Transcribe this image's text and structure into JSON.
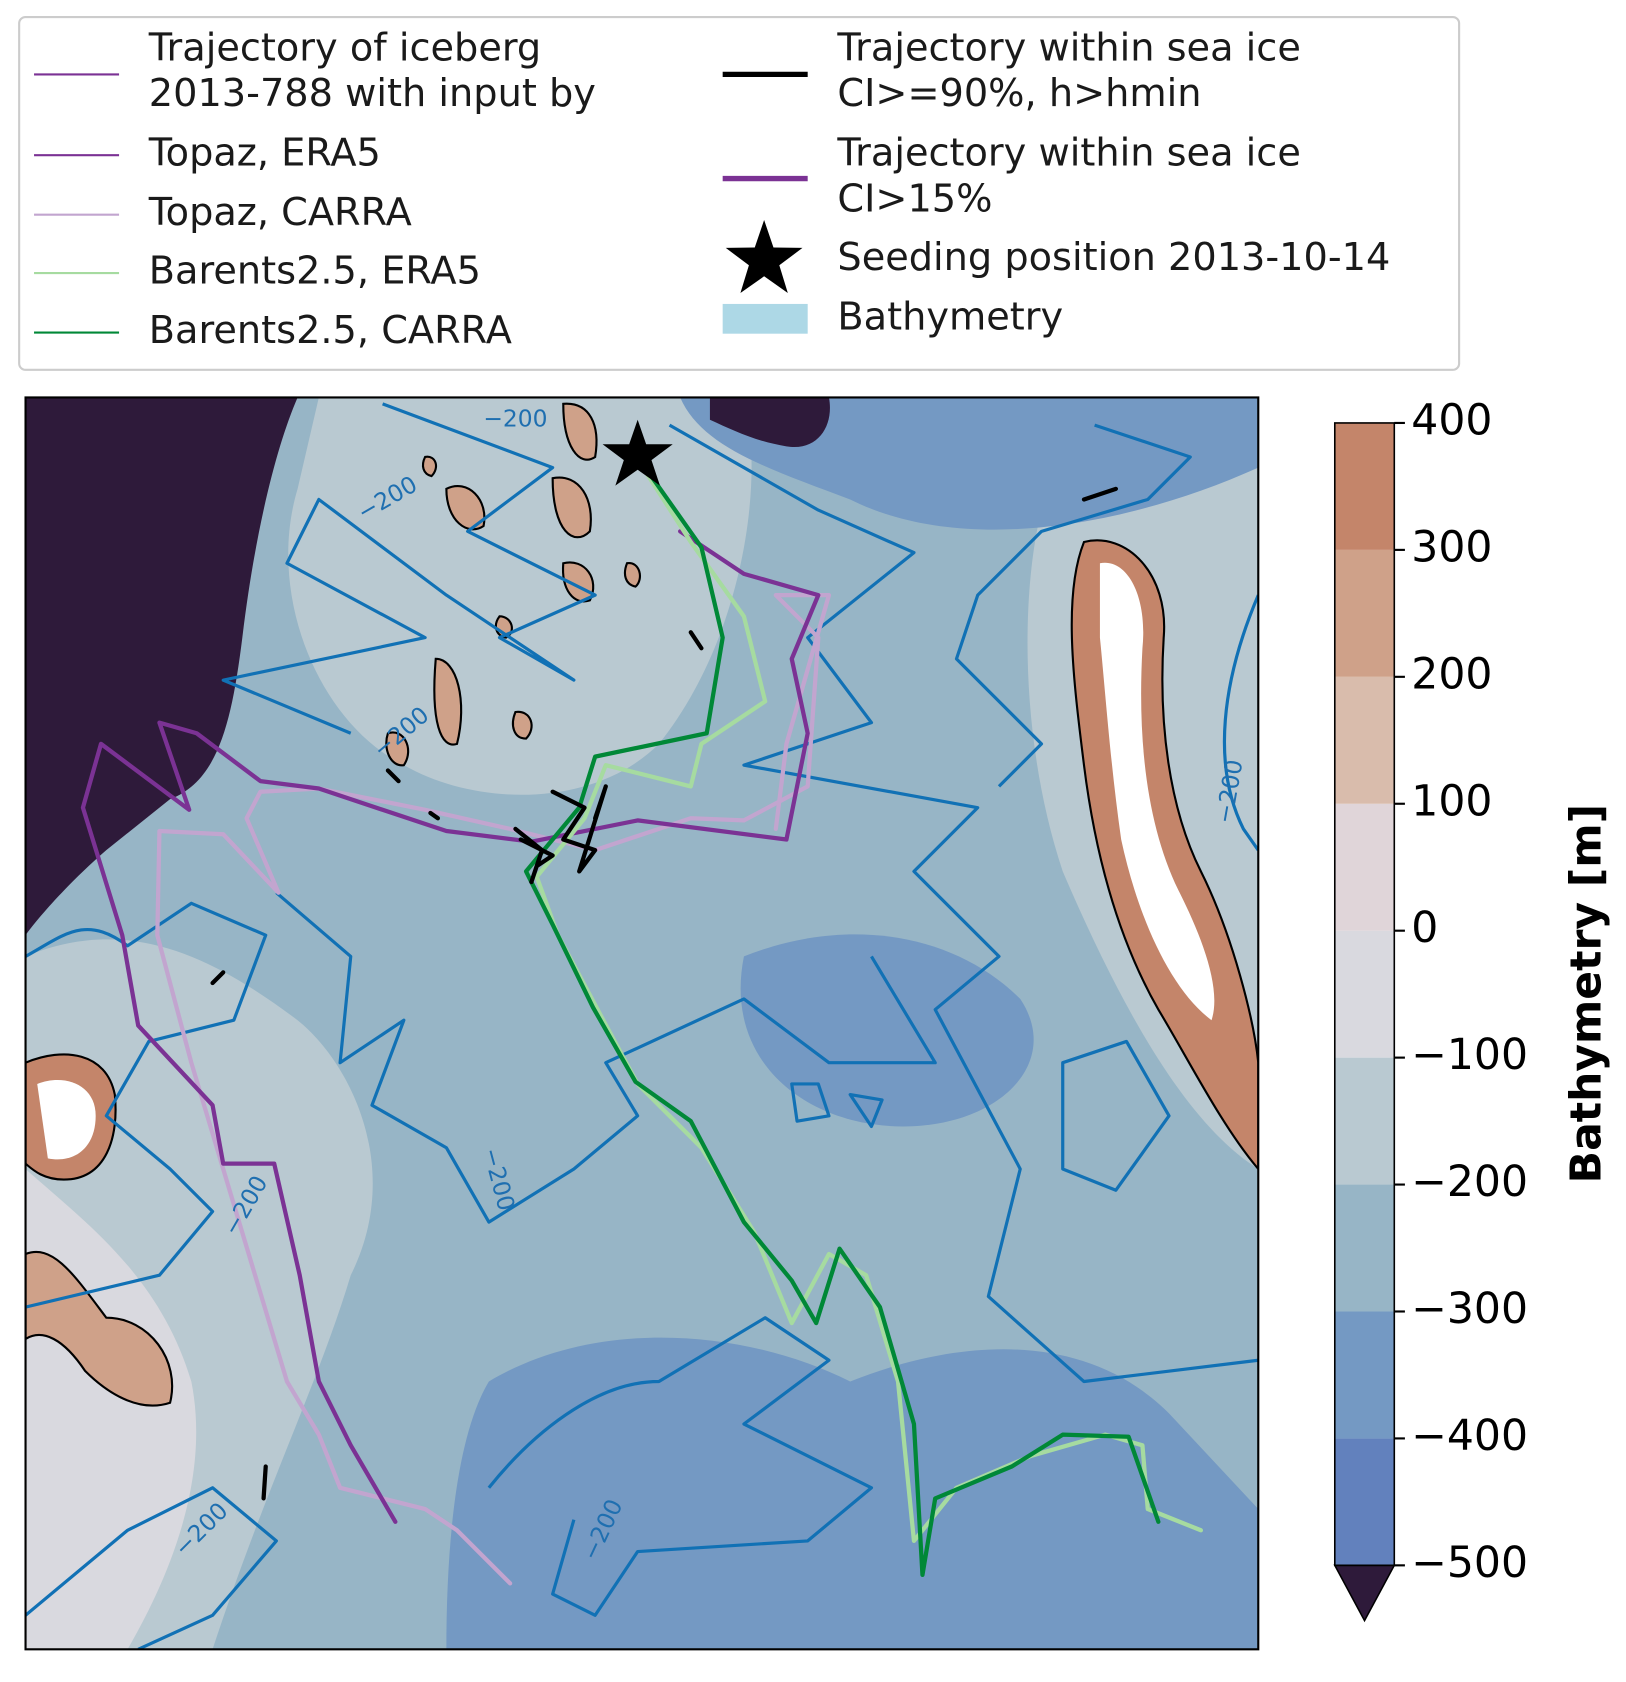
{
  "legend": {
    "entries": [
      {
        "label": [
          "Trajectory of iceberg",
          "2013-788 with input by"
        ],
        "color": "#7b3294"
      },
      {
        "label": [
          "Topaz, ERA5"
        ],
        "color": "#7b3294"
      },
      {
        "label": [
          "Topaz, CARRA"
        ],
        "color": "#c2a5cf"
      },
      {
        "label": [
          "Barents2.5, ERA5"
        ],
        "color": "#a6dba0"
      },
      {
        "label": [
          "Barents2.5, CARRA"
        ],
        "color": "#008837"
      },
      {
        "label": [
          "Trajectory within sea ice",
          "CI>=90%, h>hmin"
        ],
        "color": "#000000"
      },
      {
        "label": [
          "Trajectory within sea ice",
          "CI>15%"
        ],
        "color": "#7b3294"
      },
      {
        "label": [
          "Seeding position 2013-10-14"
        ],
        "color": "#000000"
      },
      {
        "label": [
          "Bathymetry"
        ],
        "color": "#add8e6"
      }
    ]
  },
  "map": {
    "contour_labels": [
      "−200",
      "−200",
      "−200",
      "−200",
      "−200",
      "−200",
      "−200",
      "−200"
    ]
  },
  "colorbar": {
    "label": "Bathymetry [m]",
    "ticks": [
      {
        "value": -500,
        "label": "−500"
      },
      {
        "value": -400,
        "label": "−400"
      },
      {
        "value": -300,
        "label": "−300"
      },
      {
        "value": -200,
        "label": "−200"
      },
      {
        "value": -100,
        "label": "−100"
      },
      0,
      100,
      200,
      300,
      400
    ],
    "colors": [
      "#6281bd",
      "#7499c3",
      "#97b5c6",
      "#b9c9d1",
      "#d9d9df",
      "#e0d5d9",
      "#d9bcac",
      "#cfa189",
      "#c4856a"
    ],
    "under_color": "#2e1a3a"
  }
}
